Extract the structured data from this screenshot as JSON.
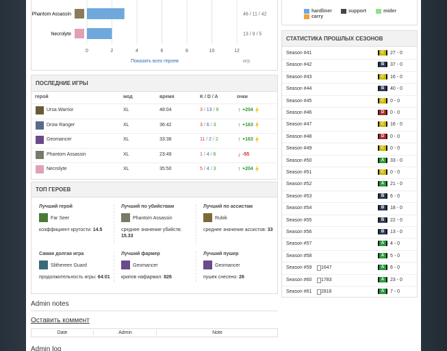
{
  "hero_chart": {
    "categories": [
      "Phantom Assassin",
      "Necrolyte"
    ],
    "values": [
      3,
      2
    ],
    "side_labels": [
      "46 / 11 / 42",
      "13 / 9 / 5"
    ],
    "xlim": [
      0,
      12
    ],
    "xticks": [
      0,
      2,
      4,
      6,
      8,
      10,
      12
    ],
    "link": "Показать всех героев",
    "x_label": "игр",
    "color": "#6fa8dc"
  },
  "legend": [
    {
      "name": "hardliner",
      "color": "#6fa8dc"
    },
    {
      "name": "support",
      "color": "#444444"
    },
    {
      "name": "mider",
      "color": "#8fe08f"
    },
    {
      "name": "carry",
      "color": "#f0a040"
    }
  ],
  "last_games": {
    "title": "ПОСЛЕДНИЕ ИГРЫ",
    "columns": [
      "герой",
      "мод",
      "время",
      "K / D / A",
      "очки"
    ],
    "rows": [
      {
        "hero": "Ursa Warrior",
        "mode": "XL",
        "time": "48:04",
        "k": "3",
        "d": "13",
        "a": "9",
        "points": "+204"
      },
      {
        "hero": "Drow Ranger",
        "mode": "XL",
        "time": "36:42",
        "k": "3",
        "d": "6",
        "a": "3",
        "points": "+163"
      },
      {
        "hero": "Geomancer",
        "mode": "XL",
        "time": "33:38",
        "k": "11",
        "d": "2",
        "a": "2",
        "points": "+163"
      },
      {
        "hero": "Phantom Assassin",
        "mode": "XL",
        "time": "23:49",
        "k": "1",
        "d": "4",
        "a": "6",
        "points": "-55"
      },
      {
        "hero": "Necrolyte",
        "mode": "XL",
        "time": "35:50",
        "k": "5",
        "d": "4",
        "a": "3",
        "points": "+204"
      }
    ]
  },
  "top_heroes": {
    "title": "ТОП ГЕРОЕВ",
    "cells": [
      {
        "title": "Лучший герой",
        "hero": "Far Seer",
        "stat": "коэффициент крутости:",
        "value": "14.5"
      },
      {
        "title": "Лучший по убийствам",
        "hero": "Phantom Assassin",
        "stat": "среднее значение убийств:",
        "value": "15.33"
      },
      {
        "title": "Лучший по ассистам",
        "hero": "Rubik",
        "stat": "среднее значение ассистов:",
        "value": "33"
      },
      {
        "title": "Самая долгая игра",
        "hero": "Slithereen Guard",
        "stat": "продолжительность игры:",
        "value": "64:01"
      },
      {
        "title": "Лучший фармер",
        "hero": "Geomancer",
        "stat": "крипов нафармил:",
        "value": "826"
      },
      {
        "title": "Лучший пушер",
        "hero": "Geomancer",
        "stat": "пушек снесено:",
        "value": "26"
      }
    ]
  },
  "admin": {
    "notes_title": "Admin notes",
    "comment_link": "Оставить коммент",
    "columns": [
      "Date",
      "Admin",
      "Note"
    ],
    "log_title": "Admin log"
  },
  "seasons": {
    "title": "СТАТИСТИКА ПРОШЛЫХ СЕЗОНОВ",
    "rows": [
      {
        "name": "Season #41",
        "grade": "C",
        "score": "27 - 0"
      },
      {
        "name": "Season #42",
        "grade": "B",
        "score": "37 - 0"
      },
      {
        "name": "Season #43",
        "grade": "C",
        "score": "16 - 0"
      },
      {
        "name": "Season #44",
        "grade": "B",
        "score": "40 - 0"
      },
      {
        "name": "Season #45",
        "grade": "C",
        "score": "0 - 0"
      },
      {
        "name": "Season #46",
        "grade": "D",
        "score": "0 - 0"
      },
      {
        "name": "Season #47",
        "grade": "C",
        "score": "16 - 0"
      },
      {
        "name": "Season #48",
        "grade": "D",
        "score": "0 - 0"
      },
      {
        "name": "Season #49",
        "grade": "C",
        "score": "0 - 0"
      },
      {
        "name": "Season #50",
        "grade": "A",
        "score": "33 - 0"
      },
      {
        "name": "Season #51",
        "grade": "C",
        "score": "0 - 0"
      },
      {
        "name": "Season #52",
        "grade": "A",
        "score": "21 - 0"
      },
      {
        "name": "Season #53",
        "grade": "B",
        "score": "6 - 0"
      },
      {
        "name": "Season #54",
        "grade": "B",
        "score": "18 - 0"
      },
      {
        "name": "Season #55",
        "grade": "B",
        "score": "22 - 0"
      },
      {
        "name": "Season #56",
        "grade": "B",
        "score": "13 - 0"
      },
      {
        "name": "Season #57",
        "grade": "A",
        "score": "4 - 0"
      },
      {
        "name": "Season #58",
        "grade": "A",
        "score": "5 - 0"
      },
      {
        "name": "Season #59",
        "grade": "A",
        "score": "6 - 0",
        "rating": "1647"
      },
      {
        "name": "Season #60",
        "grade": "A",
        "score": "23 - 0",
        "rating": "1783"
      },
      {
        "name": "Season #61",
        "grade": "A",
        "score": "7 - 0",
        "rating": "2816"
      }
    ]
  }
}
